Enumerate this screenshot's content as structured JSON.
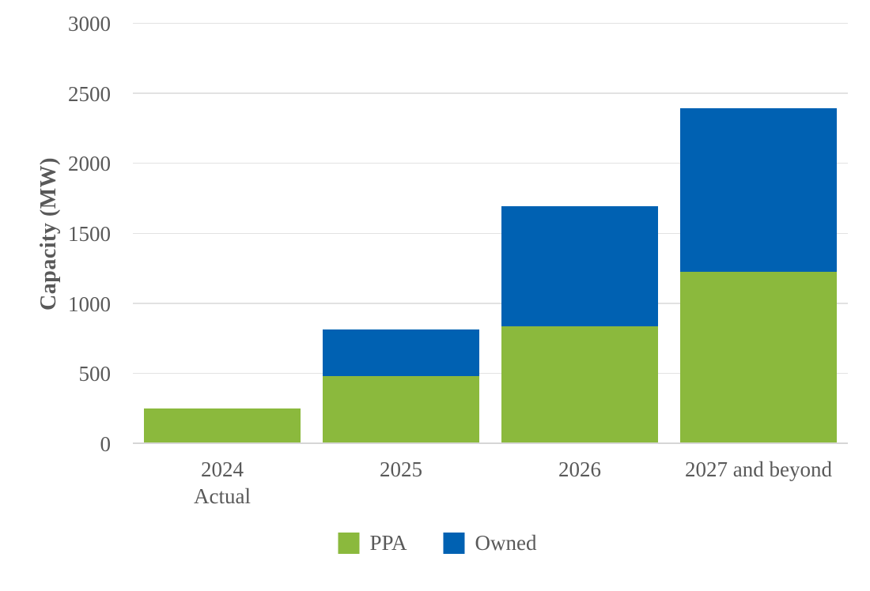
{
  "chart_data": {
    "type": "bar",
    "stacked": true,
    "title": "",
    "ylabel": "Capacity (MW)",
    "xlabel": "",
    "ylim": [
      0,
      3000
    ],
    "ytick_step": 500,
    "yticks": [
      0,
      500,
      1000,
      1500,
      2000,
      2500,
      3000
    ],
    "grid": true,
    "legend_position": "bottom-center",
    "categories": [
      "2024 Actual",
      "2025",
      "2026",
      "2027 and beyond"
    ],
    "category_label_lines": [
      [
        "2024",
        "Actual"
      ],
      [
        "2025"
      ],
      [
        "2026"
      ],
      [
        "2027 and beyond"
      ]
    ],
    "series": [
      {
        "name": "PPA",
        "color": "#8BB93D",
        "values": [
          245,
          475,
          830,
          1220
        ]
      },
      {
        "name": "Owned",
        "color": "#0061B2",
        "values": [
          0,
          330,
          855,
          1165
        ]
      }
    ],
    "stack_totals": [
      245,
      805,
      1685,
      2385
    ]
  },
  "colors": {
    "text": "#595959",
    "gridline": "#E2E2E2",
    "axis_baseline": "#D6D6D6",
    "background": "#FFFFFF",
    "ppa_green": "#8BB93D",
    "owned_blue": "#0061B2"
  }
}
